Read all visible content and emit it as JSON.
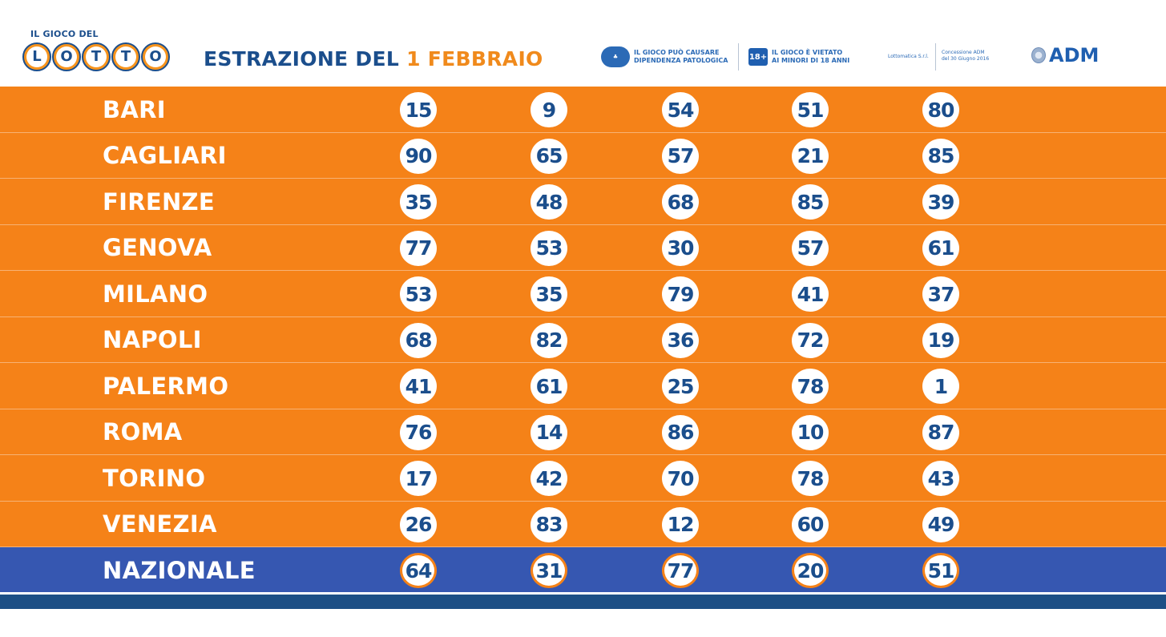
{
  "header": {
    "logo": {
      "top_text": "IL GIOCO DEL",
      "letters": [
        "L",
        "O",
        "T",
        "T",
        "O"
      ]
    },
    "title_prefix": "ESTRAZIONE DEL ",
    "title_date": "1 FEBBRAIO",
    "warning_1": {
      "icon": "gioca-responsabile-icon",
      "line1": "IL GIOCO PUÒ CAUSARE",
      "line2": "DIPENDENZA PATOLOGICA"
    },
    "warning_2": {
      "badge": "18+",
      "line1": "IL GIOCO È VIETATO",
      "line2": "AI MINORI DI 18 ANNI"
    },
    "operator": "Lottomatica S.r.l.",
    "concession": {
      "line1": "Concessione ADM",
      "line2": "del 30 Giugno 2016"
    },
    "adm_label": "ADM"
  },
  "colors": {
    "orange": "#f58218",
    "navy": "#1b4e8c",
    "nazionale_blue": "#3657b1"
  },
  "draws": [
    {
      "city": "BARI",
      "numbers": [
        "15",
        "9",
        "54",
        "51",
        "80"
      ]
    },
    {
      "city": "CAGLIARI",
      "numbers": [
        "90",
        "65",
        "57",
        "21",
        "85"
      ]
    },
    {
      "city": "FIRENZE",
      "numbers": [
        "35",
        "48",
        "68",
        "85",
        "39"
      ]
    },
    {
      "city": "GENOVA",
      "numbers": [
        "77",
        "53",
        "30",
        "57",
        "61"
      ]
    },
    {
      "city": "MILANO",
      "numbers": [
        "53",
        "35",
        "79",
        "41",
        "37"
      ]
    },
    {
      "city": "NAPOLI",
      "numbers": [
        "68",
        "82",
        "36",
        "72",
        "19"
      ]
    },
    {
      "city": "PALERMO",
      "numbers": [
        "41",
        "61",
        "25",
        "78",
        "1"
      ]
    },
    {
      "city": "ROMA",
      "numbers": [
        "76",
        "14",
        "86",
        "10",
        "87"
      ]
    },
    {
      "city": "TORINO",
      "numbers": [
        "17",
        "42",
        "70",
        "78",
        "43"
      ]
    },
    {
      "city": "VENEZIA",
      "numbers": [
        "26",
        "83",
        "12",
        "60",
        "49"
      ]
    },
    {
      "city": "NAZIONALE",
      "numbers": [
        "64",
        "31",
        "77",
        "20",
        "51"
      ]
    }
  ]
}
